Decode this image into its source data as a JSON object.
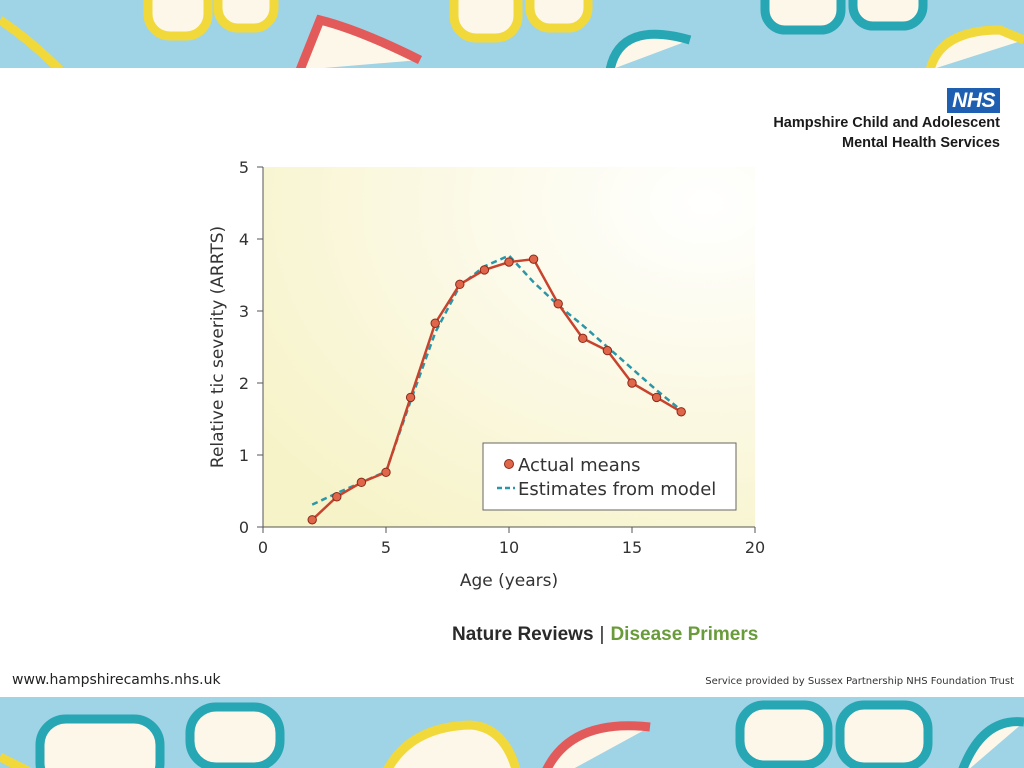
{
  "header": {
    "nhs_logo": "NHS",
    "org_line1": "Hampshire Child and Adolescent",
    "org_line2": "Mental Health Services"
  },
  "chart_data": {
    "type": "line",
    "xlabel": "Age (years)",
    "ylabel": "Relative tic severity (ARRTS)",
    "xlim": [
      0,
      20
    ],
    "ylim": [
      0,
      5
    ],
    "xticks": [
      "0",
      "5",
      "10",
      "15",
      "20"
    ],
    "yticks": [
      "0",
      "1",
      "2",
      "3",
      "4",
      "5"
    ],
    "legend_position": "bottom-right",
    "series": [
      {
        "name": "Actual means",
        "color": "#c8432d",
        "style": "solid-with-markers",
        "x": [
          2,
          3,
          4,
          5,
          6,
          7,
          8,
          9,
          10,
          11,
          12,
          13,
          14,
          15,
          16,
          17
        ],
        "values": [
          0.1,
          0.42,
          0.62,
          0.76,
          1.8,
          2.83,
          3.37,
          3.57,
          3.68,
          3.72,
          3.1,
          2.62,
          2.45,
          2.0,
          1.8,
          1.6
        ]
      },
      {
        "name": "Estimates from model",
        "color": "#2a97a8",
        "style": "dashed",
        "x": [
          2,
          3,
          4,
          5,
          6,
          7,
          8,
          9,
          10,
          11,
          12,
          13,
          14,
          15,
          16,
          17
        ],
        "values": [
          0.31,
          0.47,
          0.62,
          0.77,
          1.75,
          2.7,
          3.35,
          3.62,
          3.77,
          3.4,
          3.08,
          2.8,
          2.5,
          2.2,
          1.9,
          1.62
        ]
      }
    ]
  },
  "credit": {
    "publisher": "Nature Reviews",
    "separator": "|",
    "series_name": "Disease Primers"
  },
  "footer": {
    "url": "www.hampshirecamhs.nhs.uk",
    "note": "Service provided by Sussex Partnership NHS Foundation Trust"
  },
  "colors": {
    "banner_bg": "#9fd3e6",
    "glasses": [
      "#f2d93b",
      "#e35a5a",
      "#27a6b3"
    ],
    "nhs_blue": "#1e5fb2",
    "disease_primers_green": "#6a9b3a"
  }
}
